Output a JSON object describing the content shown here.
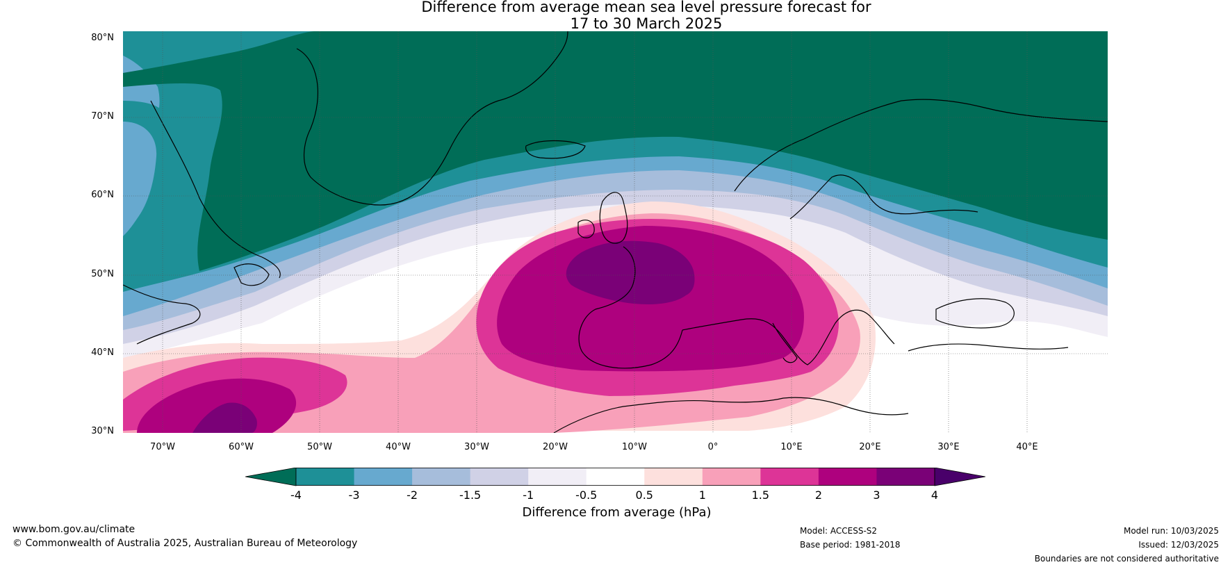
{
  "title": {
    "line1": "Difference from average mean sea level pressure forecast for",
    "line2": "17 to 30 March 2025"
  },
  "map": {
    "lat_labels": [
      "80°N",
      "70°N",
      "60°N",
      "50°N",
      "40°N",
      "30°N"
    ],
    "lon_labels": [
      "70°W",
      "60°W",
      "50°W",
      "40°W",
      "30°W",
      "20°W",
      "10°W",
      "0°",
      "10°E",
      "20°E",
      "30°E",
      "40°E"
    ]
  },
  "colorbar": {
    "ticks": [
      "-4",
      "-3",
      "-2",
      "-1.5",
      "-1",
      "-0.5",
      "0.5",
      "1",
      "1.5",
      "2",
      "3",
      "4"
    ],
    "colors": [
      "#006d57",
      "#1e9097",
      "#67a9cf",
      "#a6bddb",
      "#d0d1e6",
      "#f1eef6",
      "#ffffff",
      "#fde0dd",
      "#f8a0b9",
      "#dd3497",
      "#ae017e",
      "#7a0177",
      "#49006a"
    ],
    "label": "Difference from average (hPa)"
  },
  "footer": {
    "website": "www.bom.gov.au/climate",
    "copyright": "© Commonwealth of Australia 2025, Australian Bureau of Meteorology",
    "model": "Model: ACCESS-S2",
    "base_period": "Base period: 1981-2018",
    "model_run": "Model run: 10/03/2025",
    "issued": "Issued: 12/03/2025",
    "disclaimer": "Boundaries are not considered authoritative"
  }
}
